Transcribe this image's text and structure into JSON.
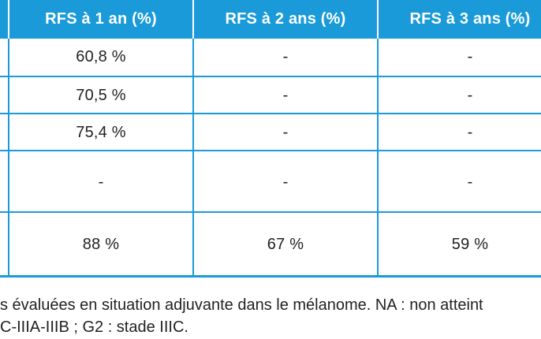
{
  "table": {
    "headers": [
      "RFS à 1 an (%)",
      "RFS à 2 ans (%)",
      "RFS à 3 ans (%)"
    ],
    "rows": [
      [
        "60,8 %",
        "-",
        "-"
      ],
      [
        "70,5 %",
        "-",
        "-"
      ],
      [
        "75,4 %",
        "-",
        "-"
      ],
      [
        "-",
        "-",
        "-"
      ],
      [
        "88 %",
        "67 %",
        "59 %"
      ]
    ]
  },
  "caption": {
    "line1": "s évaluées en situation adjuvante dans le mélanome. NA : non atteint",
    "line2": "C-IIIA-IIIB ; G2 : stade IIIC."
  },
  "colors": {
    "accent": "#1a9ad9",
    "text": "#231f20"
  }
}
